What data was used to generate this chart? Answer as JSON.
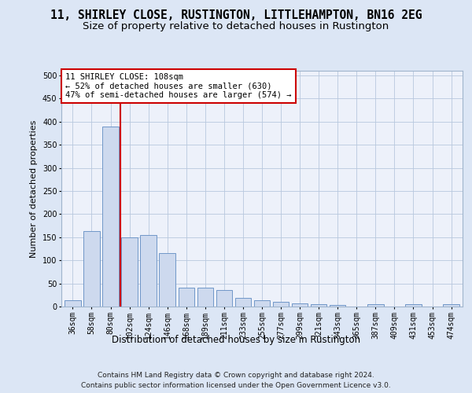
{
  "title1": "11, SHIRLEY CLOSE, RUSTINGTON, LITTLEHAMPTON, BN16 2EG",
  "title2": "Size of property relative to detached houses in Rustington",
  "xlabel": "Distribution of detached houses by size in Rustington",
  "ylabel": "Number of detached properties",
  "categories": [
    "36sqm",
    "58sqm",
    "80sqm",
    "102sqm",
    "124sqm",
    "146sqm",
    "168sqm",
    "189sqm",
    "211sqm",
    "233sqm",
    "255sqm",
    "277sqm",
    "299sqm",
    "321sqm",
    "343sqm",
    "365sqm",
    "387sqm",
    "409sqm",
    "431sqm",
    "453sqm",
    "474sqm"
  ],
  "values": [
    13,
    163,
    390,
    150,
    155,
    115,
    40,
    40,
    35,
    18,
    13,
    10,
    7,
    5,
    4,
    0,
    5,
    0,
    5,
    0,
    5
  ],
  "bar_color": "#cdd9ee",
  "bar_edge_color": "#7097c8",
  "vline_x_index": 2.5,
  "vline_color": "#cc0000",
  "annotation_text": "11 SHIRLEY CLOSE: 108sqm\n← 52% of detached houses are smaller (630)\n47% of semi-detached houses are larger (574) →",
  "annotation_box_color": "#ffffff",
  "annotation_box_edge_color": "#cc0000",
  "ylim": [
    0,
    510
  ],
  "yticks": [
    0,
    50,
    100,
    150,
    200,
    250,
    300,
    350,
    400,
    450,
    500
  ],
  "footer": "Contains HM Land Registry data © Crown copyright and database right 2024.\nContains public sector information licensed under the Open Government Licence v3.0.",
  "bg_color": "#dce6f5",
  "plot_bg_color": "#edf1fa",
  "title1_fontsize": 10.5,
  "title2_fontsize": 9.5,
  "xlabel_fontsize": 8.5,
  "ylabel_fontsize": 8,
  "tick_fontsize": 7,
  "footer_fontsize": 6.5,
  "ann_fontsize": 7.5
}
